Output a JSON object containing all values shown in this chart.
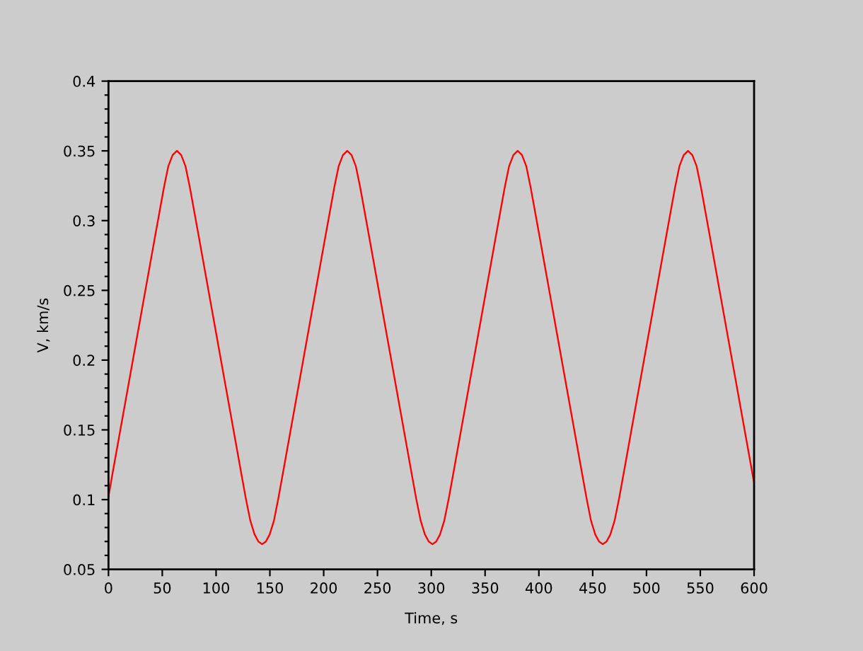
{
  "chart_data": {
    "type": "line",
    "xlabel": "Time, s",
    "ylabel": "V, km/s",
    "x": [
      0,
      3.6,
      13.6,
      23.6,
      33.6,
      43.6,
      51.6,
      55.6,
      59.6,
      63.6,
      67.6,
      71.6,
      75.6,
      83.6,
      93.6,
      103.6,
      113.6,
      123.6,
      127.6,
      131.8,
      135.8,
      139.3,
      142.8,
      146.3,
      149.8,
      153.8,
      157.9,
      161.9,
      171.9,
      181.9,
      191.9,
      201.9,
      209.9,
      213.9,
      217.9,
      221.9,
      225.9,
      229.9,
      233.9,
      241.9,
      251.9,
      261.9,
      271.9,
      281.9,
      285.9,
      290.1,
      294.1,
      297.6,
      301.1,
      304.6,
      308.1,
      312.1,
      316.3,
      320.3,
      330.3,
      340.3,
      350.3,
      360.3,
      368.3,
      372.3,
      376.3,
      380.3,
      384.3,
      388.3,
      392.3,
      400.3,
      410.3,
      420.3,
      430.3,
      440.3,
      444.3,
      448.4,
      452.4,
      455.9,
      459.4,
      462.9,
      466.4,
      470.4,
      474.6,
      478.6,
      488.6,
      498.6,
      508.6,
      518.6,
      526.6,
      530.6,
      534.6,
      538.6,
      542.6,
      546.6,
      550.6,
      558.6,
      568.6,
      578.6,
      588.6,
      598.6,
      600
    ],
    "series": [
      {
        "color": "#ff0000",
        "values": [
          0.102,
          0.118,
          0.161,
          0.204,
          0.247,
          0.29,
          0.324,
          0.339,
          0.347,
          0.35,
          0.347,
          0.339,
          0.324,
          0.29,
          0.247,
          0.204,
          0.161,
          0.118,
          0.101,
          0.085,
          0.075,
          0.07,
          0.068,
          0.07,
          0.075,
          0.085,
          0.101,
          0.118,
          0.161,
          0.204,
          0.247,
          0.29,
          0.324,
          0.339,
          0.347,
          0.35,
          0.347,
          0.339,
          0.324,
          0.29,
          0.247,
          0.204,
          0.161,
          0.118,
          0.101,
          0.085,
          0.075,
          0.07,
          0.068,
          0.07,
          0.075,
          0.085,
          0.101,
          0.118,
          0.161,
          0.204,
          0.247,
          0.29,
          0.324,
          0.339,
          0.347,
          0.35,
          0.347,
          0.339,
          0.324,
          0.29,
          0.247,
          0.204,
          0.161,
          0.118,
          0.101,
          0.085,
          0.075,
          0.07,
          0.068,
          0.07,
          0.075,
          0.085,
          0.101,
          0.118,
          0.161,
          0.204,
          0.247,
          0.29,
          0.324,
          0.339,
          0.347,
          0.35,
          0.347,
          0.339,
          0.324,
          0.29,
          0.247,
          0.204,
          0.161,
          0.118,
          0.112
        ]
      }
    ],
    "xlim": [
      0,
      600
    ],
    "ylim": [
      0.05,
      0.4
    ],
    "xticks": [
      0,
      50,
      100,
      150,
      200,
      250,
      300,
      350,
      400,
      450,
      500,
      550,
      600
    ],
    "yticks": [
      0.05,
      {
        "value": 0.06,
        "label": null
      },
      {
        "value": 0.07,
        "label": null
      },
      {
        "value": 0.08,
        "label": null
      },
      {
        "value": 0.09,
        "label": null
      },
      0.1,
      {
        "value": 0.11,
        "label": null
      },
      {
        "value": 0.12,
        "label": null
      },
      {
        "value": 0.13,
        "label": null
      },
      {
        "value": 0.14,
        "label": null
      },
      0.15,
      {
        "value": 0.16,
        "label": null
      },
      {
        "value": 0.17,
        "label": null
      },
      {
        "value": 0.18,
        "label": null
      },
      {
        "value": 0.19,
        "label": null
      },
      0.2,
      {
        "value": 0.21,
        "label": null
      },
      {
        "value": 0.22,
        "label": null
      },
      {
        "value": 0.23,
        "label": null
      },
      {
        "value": 0.24,
        "label": null
      },
      0.25,
      {
        "value": 0.26,
        "label": null
      },
      {
        "value": 0.27,
        "label": null
      },
      {
        "value": 0.28,
        "label": null
      },
      {
        "value": 0.29,
        "label": null
      },
      0.3,
      {
        "value": 0.31,
        "label": null
      },
      {
        "value": 0.32,
        "label": null
      },
      {
        "value": 0.33,
        "label": null
      },
      {
        "value": 0.34,
        "label": null
      },
      0.35,
      {
        "value": 0.36,
        "label": null
      },
      {
        "value": 0.37,
        "label": null
      },
      {
        "value": 0.38,
        "label": null
      },
      {
        "value": 0.39,
        "label": null
      },
      0.4
    ],
    "grid": false,
    "marker": "none",
    "line_style": "solid"
  }
}
